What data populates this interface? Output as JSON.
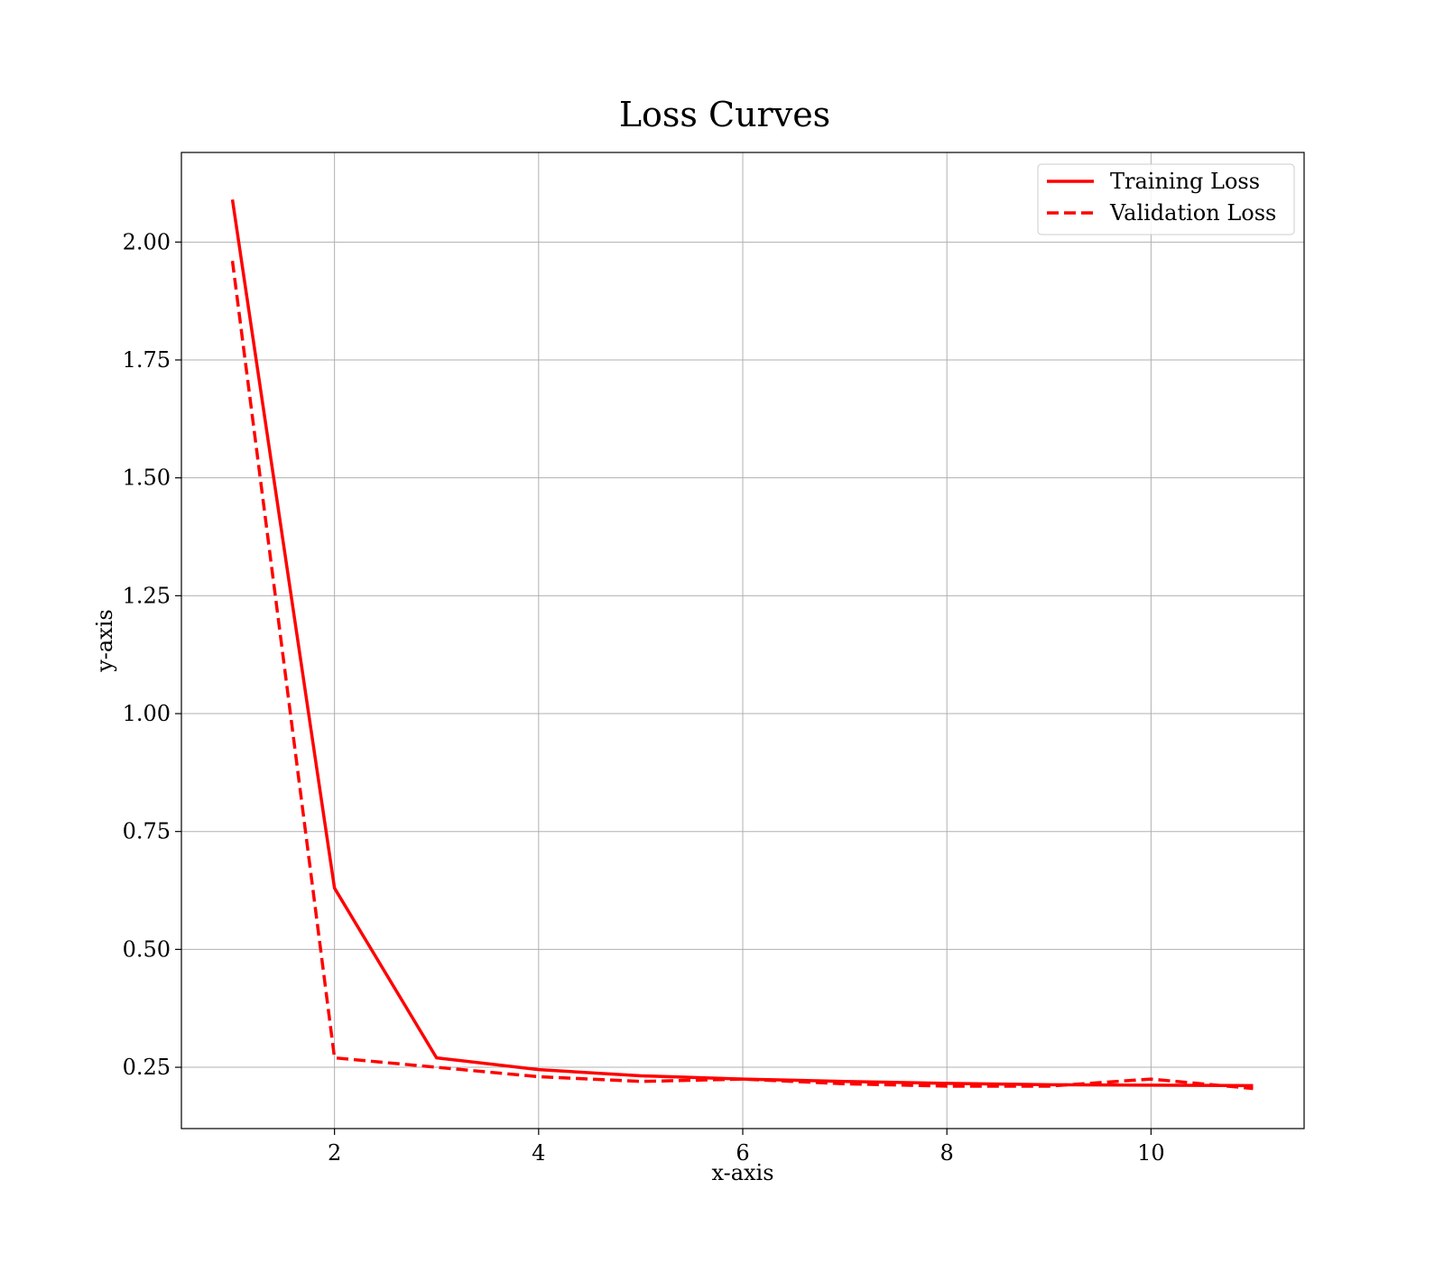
{
  "chart_data": {
    "type": "line",
    "title": "Loss Curves",
    "xlabel": "x-axis",
    "ylabel": "y-axis",
    "xlim": [
      0.5,
      11.5
    ],
    "ylim": [
      0.12,
      2.19
    ],
    "xticks": [
      2,
      4,
      6,
      8,
      10
    ],
    "xtick_labels": [
      "2",
      "4",
      "6",
      "8",
      "10"
    ],
    "yticks": [
      0.25,
      0.5,
      0.75,
      1.0,
      1.25,
      1.5,
      1.75,
      2.0
    ],
    "ytick_labels": [
      "0.25",
      "0.50",
      "0.75",
      "1.00",
      "1.25",
      "1.50",
      "1.75",
      "2.00"
    ],
    "grid": true,
    "legend_position": "top-right",
    "x": [
      1,
      2,
      3,
      4,
      5,
      6,
      7,
      8,
      9,
      10,
      11
    ],
    "series": [
      {
        "name": "Training Loss",
        "style": "solid",
        "color": "#ff0000",
        "values": [
          2.09,
          0.63,
          0.27,
          0.245,
          0.232,
          0.225,
          0.22,
          0.216,
          0.213,
          0.212,
          0.211
        ]
      },
      {
        "name": "Validation Loss",
        "style": "dashed",
        "color": "#ff0000",
        "values": [
          1.96,
          0.27,
          0.25,
          0.23,
          0.22,
          0.225,
          0.215,
          0.21,
          0.21,
          0.225,
          0.205
        ]
      }
    ]
  }
}
